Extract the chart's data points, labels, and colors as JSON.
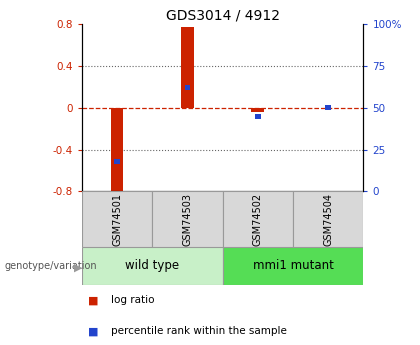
{
  "title": "GDS3014 / 4912",
  "samples": [
    "GSM74501",
    "GSM74503",
    "GSM74502",
    "GSM74504"
  ],
  "log_ratios": [
    -0.82,
    0.77,
    -0.04,
    0.0
  ],
  "percentile_ranks": [
    18.0,
    62.0,
    45.0,
    50.0
  ],
  "ylim_left": [
    -0.8,
    0.8
  ],
  "ylim_right": [
    0,
    100
  ],
  "yticks_left": [
    -0.8,
    -0.4,
    0.0,
    0.4,
    0.8
  ],
  "yticks_right": [
    0,
    25,
    50,
    75,
    100
  ],
  "ytick_labels_left": [
    "-0.8",
    "-0.4",
    "0",
    "0.4",
    "0.8"
  ],
  "ytick_labels_right": [
    "0",
    "25",
    "50",
    "75",
    "100%"
  ],
  "groups": [
    {
      "name": "wild type",
      "indices": [
        0,
        1
      ],
      "color": "#c8f0c8"
    },
    {
      "name": "mmi1 mutant",
      "indices": [
        2,
        3
      ],
      "color": "#55dd55"
    }
  ],
  "bar_color_red": "#cc2200",
  "bar_color_blue": "#2244cc",
  "bar_width": 0.18,
  "blue_bar_width": 0.08,
  "blue_bar_height": 0.045,
  "hline_color": "#cc2200",
  "grid_color": "#666666",
  "bg_color": "#ffffff",
  "plot_bg": "#ffffff",
  "label_log_ratio": "log ratio",
  "label_percentile": "percentile rank within the sample",
  "label_genotype": "genotype/variation",
  "title_fontsize": 10,
  "tick_fontsize": 7.5,
  "legend_fontsize": 7.5,
  "group_label_fontsize": 8.5,
  "sample_label_fontsize": 7
}
